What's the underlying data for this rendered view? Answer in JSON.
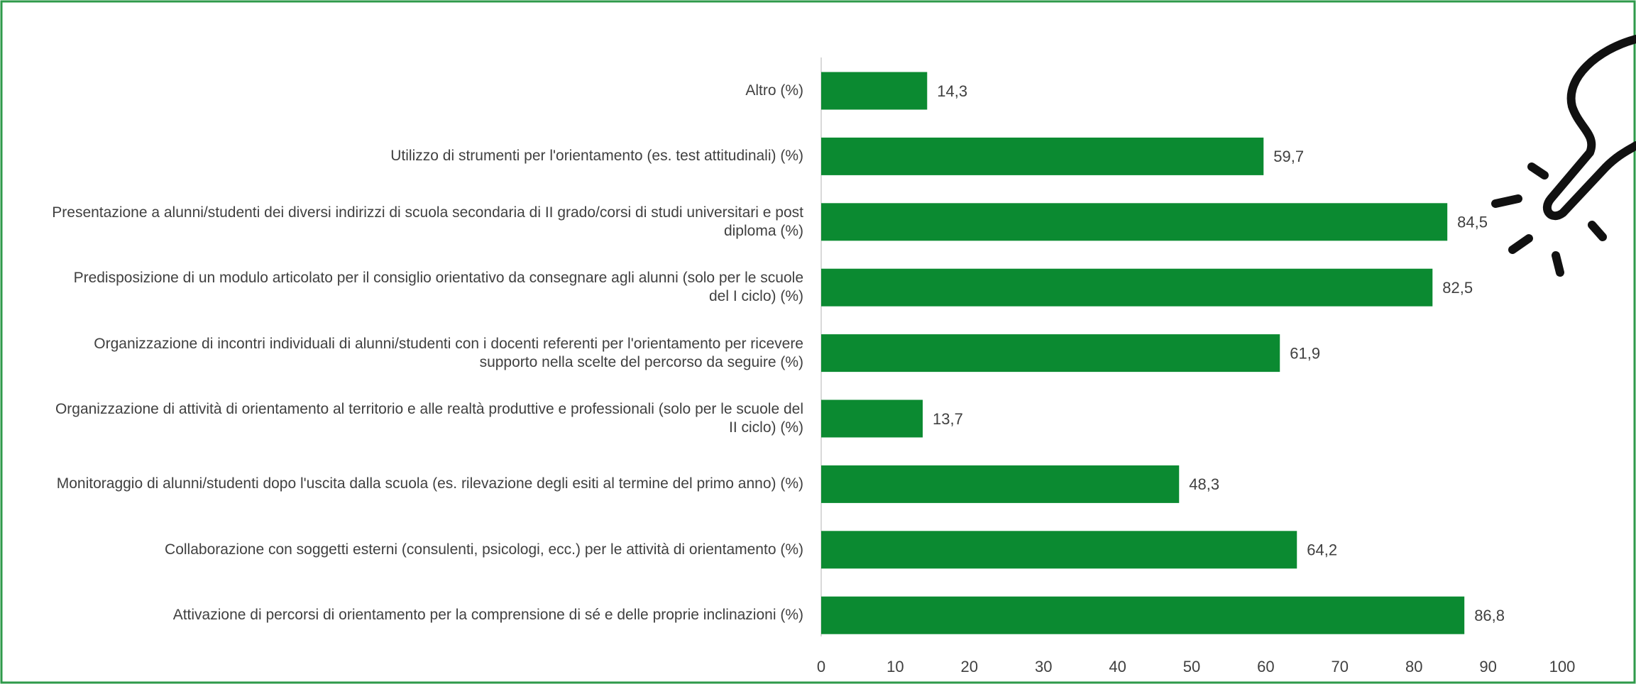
{
  "chart_data": {
    "type": "bar",
    "orientation": "horizontal",
    "categories": [
      "Altro (%)",
      "Utilizzo di strumenti per l'orientamento (es. test attitudinali) (%)",
      "Presentazione a alunni/studenti dei diversi indirizzi di scuola secondaria di II grado/corsi di studi universitari e post diploma (%)",
      "Predisposizione di un modulo articolato per il consiglio orientativo da consegnare agli alunni (solo per le scuole del I ciclo) (%)",
      "Organizzazione di incontri individuali di alunni/studenti con i docenti referenti per l'orientamento per ricevere supporto nella scelte del percorso da seguire (%)",
      "Organizzazione di attività di orientamento al territorio e alle realtà produttive e professionali (solo per le scuole del II ciclo) (%)",
      "Monitoraggio di alunni/studenti dopo l'uscita dalla scuola (es. rilevazione degli esiti al termine del primo anno) (%)",
      "Collaborazione con soggetti esterni (consulenti, psicologi, ecc.) per le attività di orientamento (%)",
      "Attivazione di percorsi di orientamento per la comprensione di sé e delle proprie inclinazioni (%)"
    ],
    "values": [
      14.3,
      59.7,
      84.5,
      82.5,
      61.9,
      13.7,
      48.3,
      64.2,
      86.8
    ],
    "value_labels": [
      "14,3",
      "59,7",
      "84,5",
      "82,5",
      "61,9",
      "13,7",
      "48,3",
      "64,2",
      "86,8"
    ],
    "color": "#0b8a31",
    "xlim": [
      0,
      100
    ],
    "xticks": [
      0,
      10,
      20,
      30,
      40,
      50,
      60,
      70,
      80,
      90,
      100
    ],
    "grid": false
  }
}
